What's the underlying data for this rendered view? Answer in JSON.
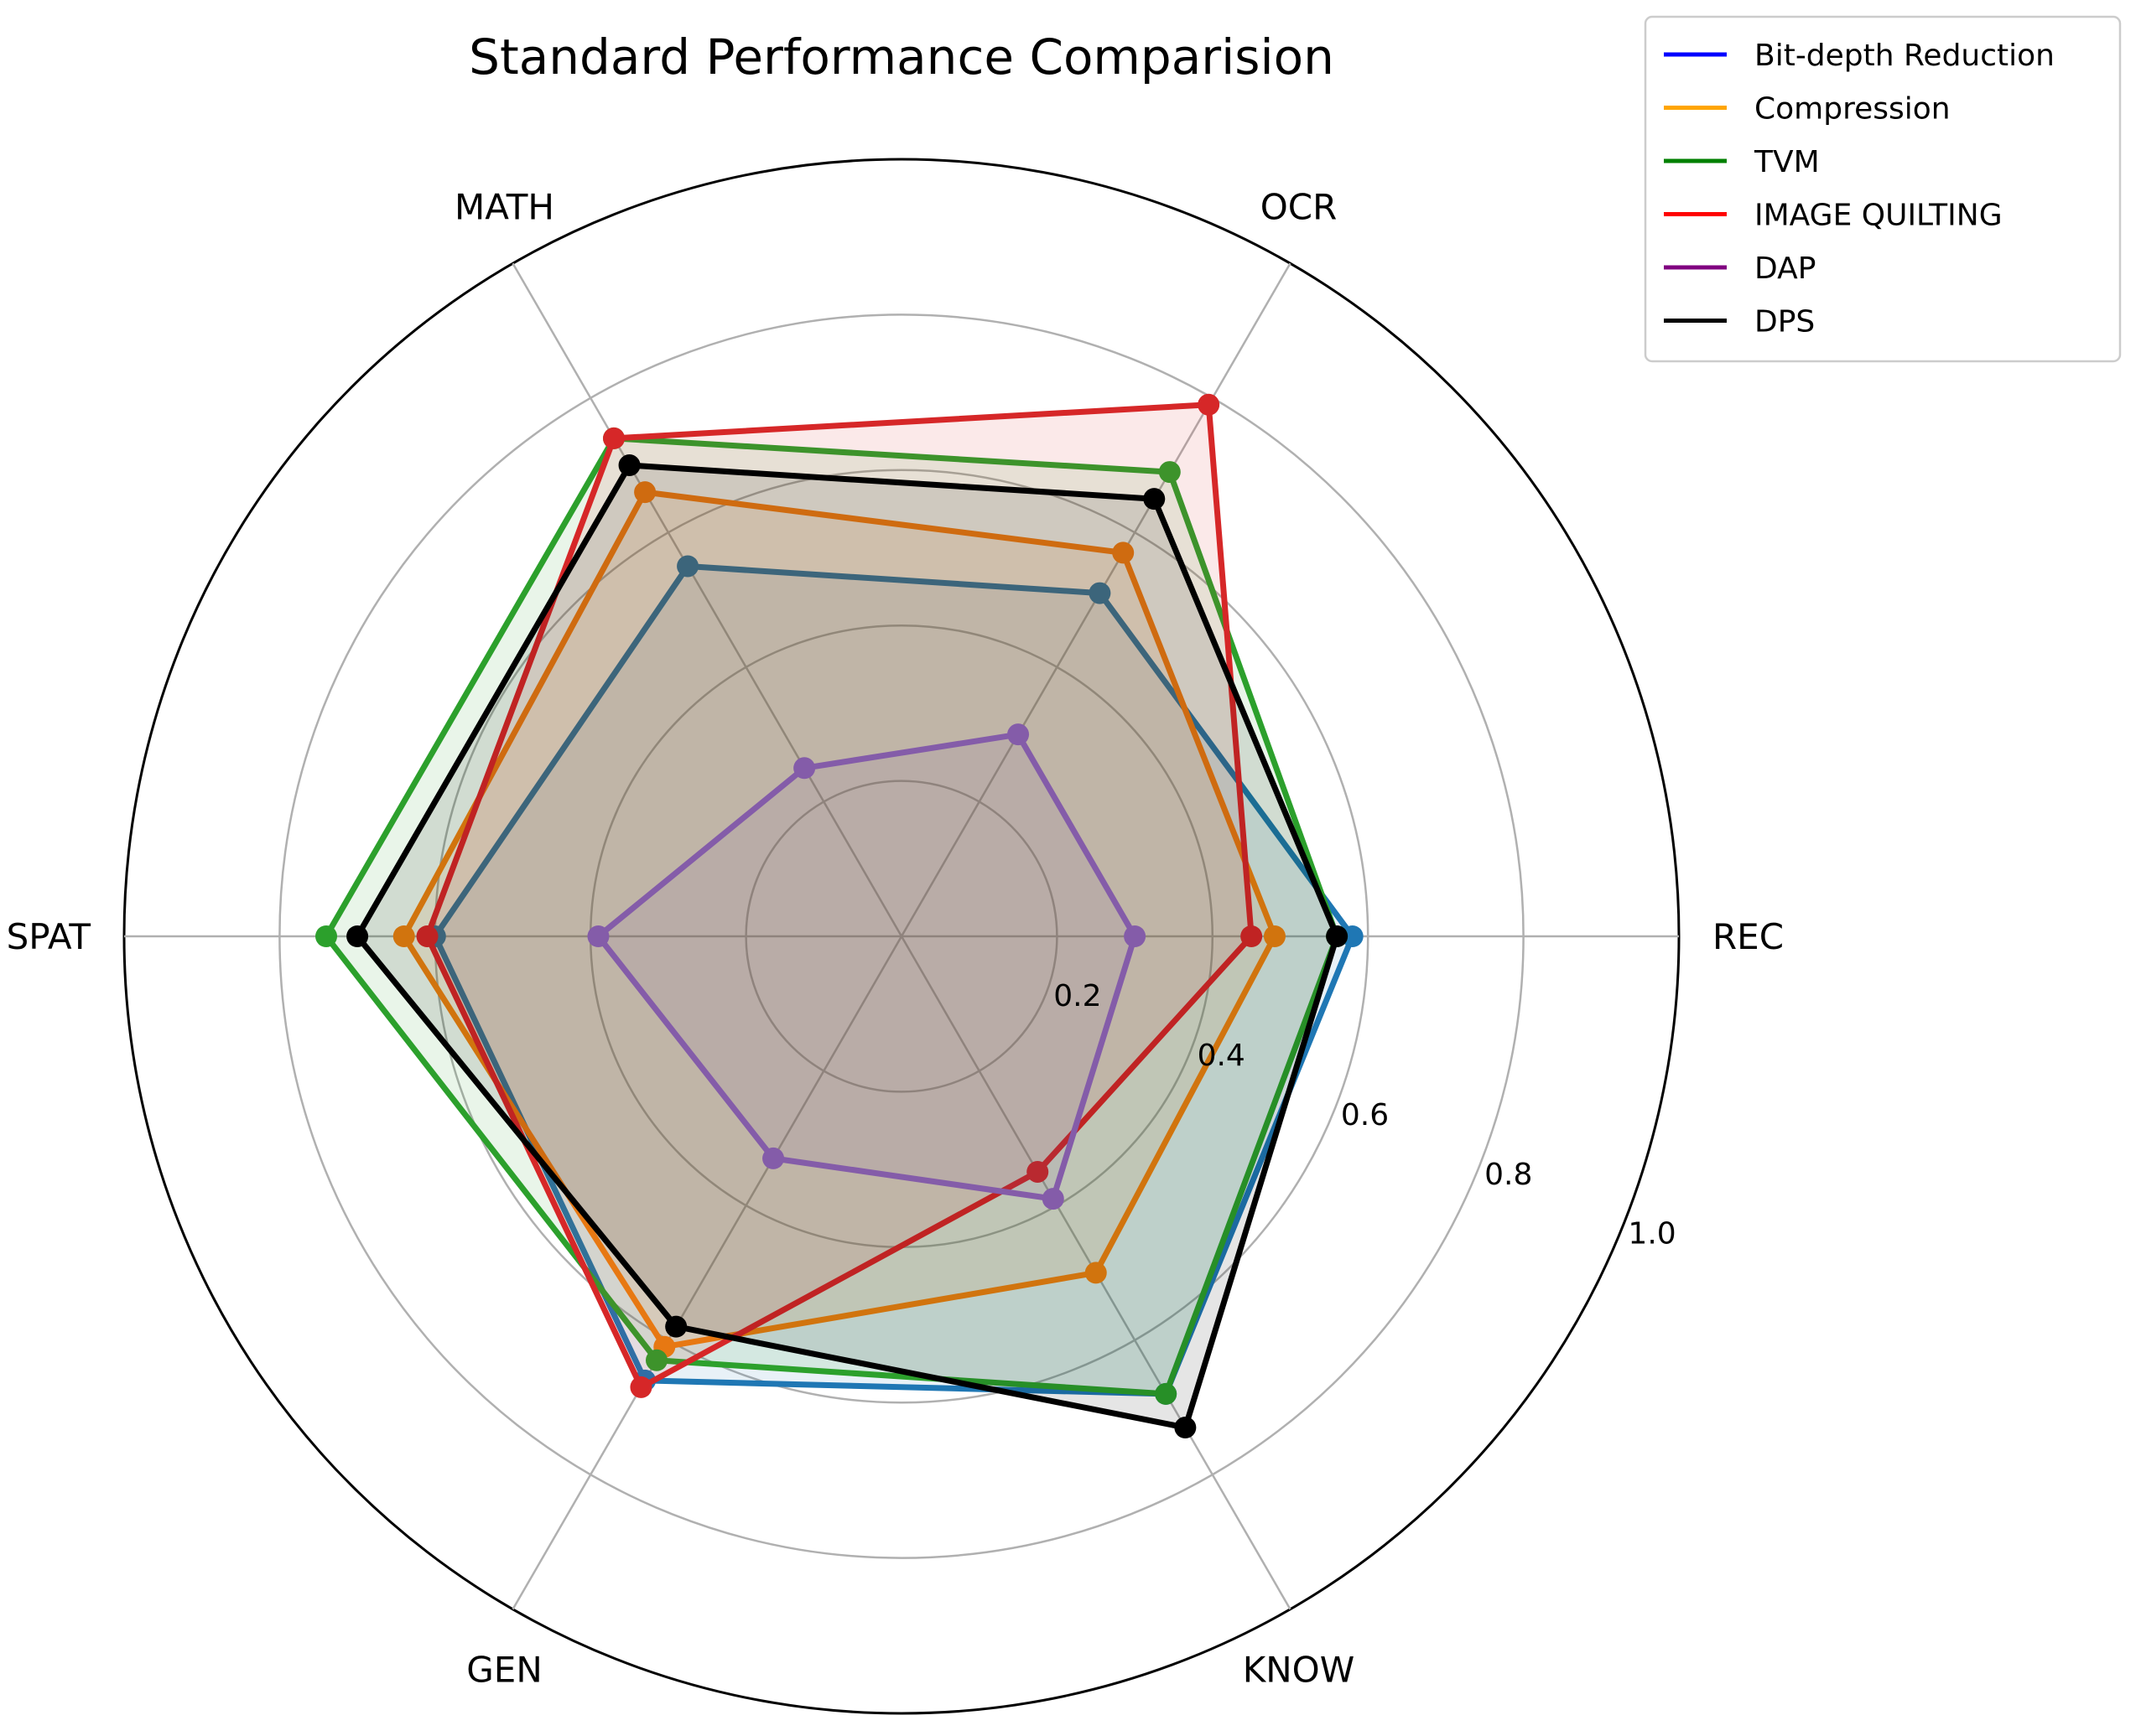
{
  "chart_data": {
    "type": "radar",
    "title": "Standard Performance Comparision",
    "axes": [
      "REC",
      "OCR",
      "MATH",
      "SPAT",
      "GEN",
      "KNOW"
    ],
    "r_ticks": [
      "0.2",
      "0.4",
      "0.6",
      "0.8",
      "1.0"
    ],
    "r_range": [
      0,
      1.0
    ],
    "grid": true,
    "legend_position": "top-right outside",
    "legend": [
      {
        "name": "Bit-depth Reduction",
        "color": "#0000ff"
      },
      {
        "name": "Compression",
        "color": "#ffa500"
      },
      {
        "name": "TVM",
        "color": "#008000"
      },
      {
        "name": "IMAGE QUILTING",
        "color": "#ff0000"
      },
      {
        "name": "DAP",
        "color": "#800080"
      },
      {
        "name": "DPS",
        "color": "#000000"
      }
    ],
    "series": [
      {
        "name": "Bit-depth Reduction",
        "color": "#1f77b4",
        "values": {
          "REC": 0.58,
          "OCR": 0.51,
          "MATH": 0.55,
          "SPAT": 0.6,
          "GEN": 0.66,
          "KNOW": 0.68
        }
      },
      {
        "name": "Compression",
        "color": "#ff7f0e",
        "values": {
          "REC": 0.48,
          "OCR": 0.57,
          "MATH": 0.66,
          "SPAT": 0.64,
          "GEN": 0.61,
          "KNOW": 0.5
        }
      },
      {
        "name": "TVM",
        "color": "#2ca02c",
        "values": {
          "REC": 0.56,
          "OCR": 0.69,
          "MATH": 0.74,
          "SPAT": 0.74,
          "GEN": 0.63,
          "KNOW": 0.68
        }
      },
      {
        "name": "IMAGE QUILTING",
        "color": "#d62728",
        "values": {
          "REC": 0.45,
          "OCR": 0.79,
          "MATH": 0.74,
          "SPAT": 0.61,
          "GEN": 0.67,
          "KNOW": 0.35
        }
      },
      {
        "name": "DAP",
        "color": "#9467bd",
        "values": {
          "REC": 0.3,
          "OCR": 0.3,
          "MATH": 0.25,
          "SPAT": 0.39,
          "GEN": 0.33,
          "KNOW": 0.39
        }
      },
      {
        "name": "DPS",
        "color": "#000000",
        "values": {
          "REC": 0.56,
          "OCR": 0.65,
          "MATH": 0.7,
          "SPAT": 0.7,
          "GEN": 0.58,
          "KNOW": 0.73
        }
      }
    ]
  }
}
